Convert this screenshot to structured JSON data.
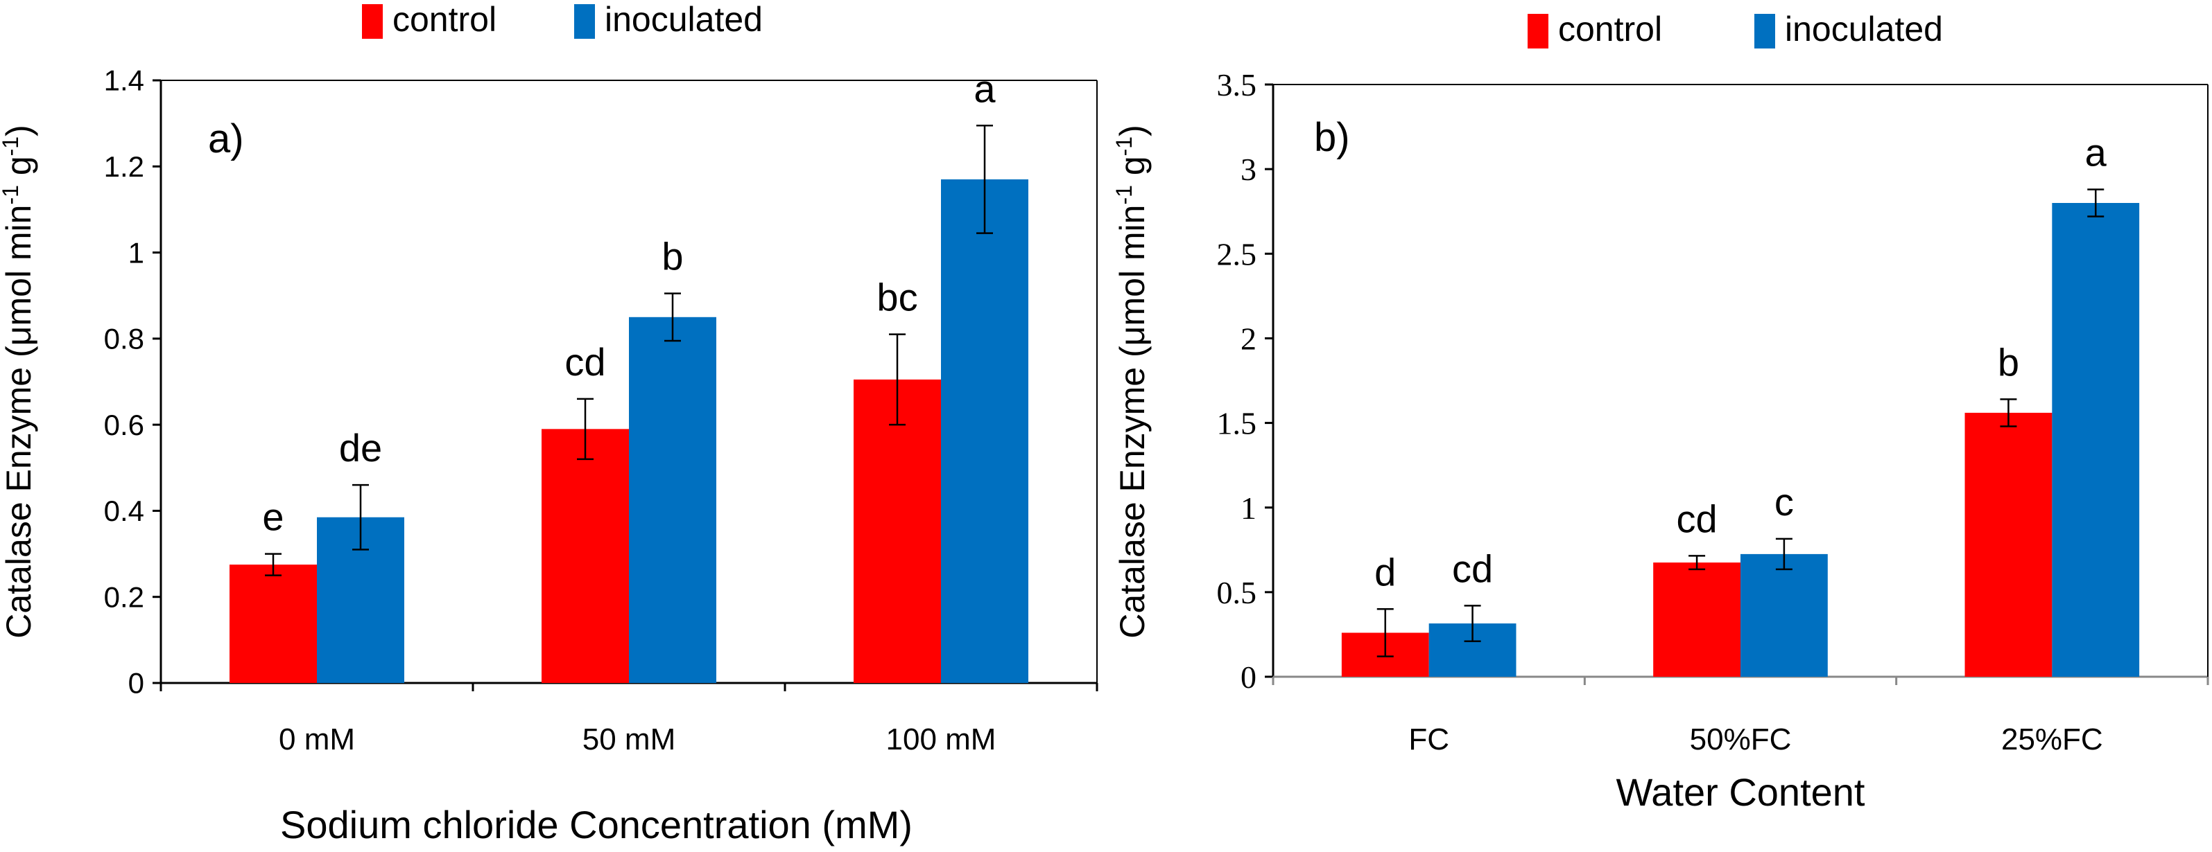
{
  "chart_data": [
    {
      "type": "bar",
      "panel_label": "a)",
      "categories": [
        "0 mM",
        "50 mM",
        "100 mM"
      ],
      "series": [
        {
          "name": "control",
          "color": "#ff0000",
          "values": [
            0.275,
            0.59,
            0.705
          ],
          "errors": [
            0.025,
            0.07,
            0.105
          ],
          "letters": [
            "e",
            "cd",
            "bc"
          ]
        },
        {
          "name": "inoculated",
          "color": "#0070c0",
          "values": [
            0.385,
            0.85,
            1.17
          ],
          "errors": [
            0.075,
            0.055,
            0.125
          ],
          "letters": [
            "de",
            "b",
            "a"
          ]
        }
      ],
      "xlabel": "Sodium chloride Concentration (mM)",
      "ylabel_main": "Catalase Enzyme (μmol min",
      "ylabel_sup1": "-1",
      "ylabel_mid": " g",
      "ylabel_sup2": "-1",
      "ylabel_end": ")",
      "ylim": [
        0,
        1.4
      ],
      "yticks": [
        0,
        0.2,
        0.4,
        0.6,
        0.8,
        1,
        1.2,
        1.4
      ],
      "ytick_labels": [
        "0",
        "0.2",
        "0.4",
        "0.6",
        "0.8",
        "1",
        "1.2",
        "1.4"
      ],
      "legend_position": "top-center",
      "grid": false
    },
    {
      "type": "bar",
      "panel_label": "b)",
      "categories": [
        "FC",
        "50%FC",
        "25%FC"
      ],
      "series": [
        {
          "name": "control",
          "color": "#ff0000",
          "values": [
            0.26,
            0.675,
            1.56
          ],
          "errors": [
            0.14,
            0.04,
            0.08
          ],
          "letters": [
            "d",
            "cd",
            "b"
          ]
        },
        {
          "name": "inoculated",
          "color": "#0070c0",
          "values": [
            0.315,
            0.725,
            2.8
          ],
          "errors": [
            0.105,
            0.09,
            0.08
          ],
          "letters": [
            "cd",
            "c",
            "a"
          ]
        }
      ],
      "xlabel": "Water Content",
      "ylabel_main": "Catalase Enzyme (μmol min",
      "ylabel_sup1": "-1",
      "ylabel_mid": " g",
      "ylabel_sup2": "-1",
      "ylabel_end": ")",
      "ylim": [
        0,
        3.5
      ],
      "yticks": [
        0,
        0.5,
        1,
        1.5,
        2,
        2.5,
        3,
        3.5
      ],
      "ytick_labels": [
        "0",
        "0.5",
        "1",
        "1.5",
        "2",
        "2.5",
        "3",
        "3.5"
      ],
      "legend_position": "top-center",
      "grid": false
    }
  ]
}
